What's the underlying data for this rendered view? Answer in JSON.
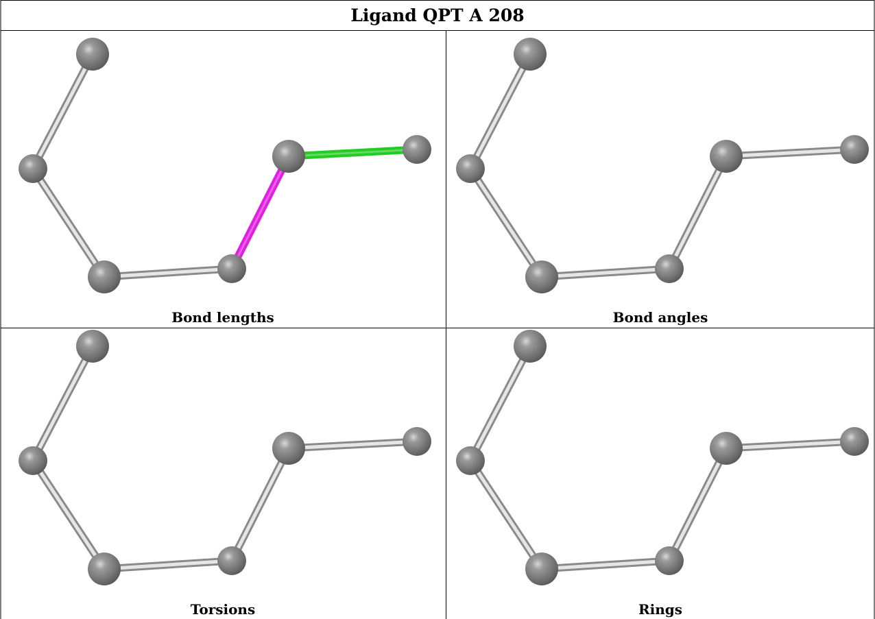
{
  "title": "Ligand QPT A 208",
  "panels": [
    {
      "caption": "Bond lengths"
    },
    {
      "caption": "Bond angles"
    },
    {
      "caption": "Torsions"
    },
    {
      "caption": "Rings"
    }
  ]
}
